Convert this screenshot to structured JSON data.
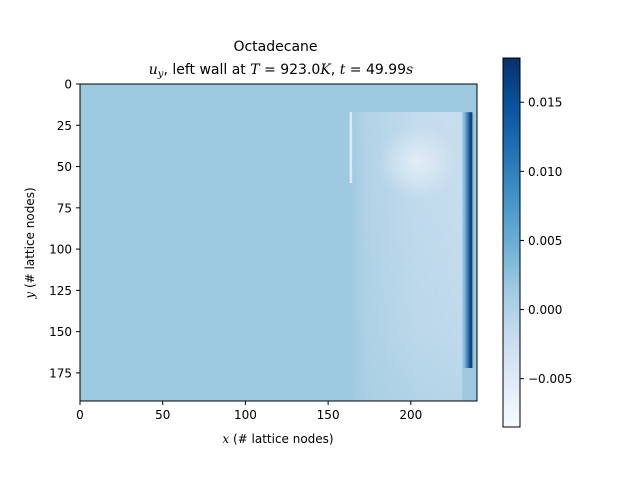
{
  "chart_data": {
    "type": "heatmap",
    "title_line1": "Octadecane",
    "title_line2": {
      "var": "u",
      "var_sub": "y",
      "text1": ", left wall at ",
      "T_sym": "T",
      "T_val": " = 923.0",
      "T_unit": "K",
      "text2": ", ",
      "t_sym": "t",
      "t_val": " = 49.99",
      "t_unit": "s"
    },
    "xlabel": {
      "var": "x",
      "rest": " (# lattice nodes)"
    },
    "ylabel": {
      "var": "y",
      "rest": " (# lattice nodes)"
    },
    "xlim": [
      0,
      240
    ],
    "ylim": [
      192,
      0
    ],
    "xticks": [
      0,
      50,
      100,
      150,
      200
    ],
    "yticks": [
      0,
      25,
      50,
      75,
      100,
      125,
      150,
      175
    ],
    "colorbar": {
      "cmap": "Blues",
      "vmin": -0.0085,
      "vmax": 0.0182,
      "ticks": [
        -0.005,
        0.0,
        0.005,
        0.01,
        0.015
      ],
      "tick_labels": [
        "−0.005",
        "0.000",
        "0.005",
        "0.010",
        "0.015"
      ]
    },
    "background_value": 0.0015,
    "features": [
      {
        "feature": "strong positive boundary layer",
        "x": [
          231,
          238
        ],
        "y": [
          17,
          172
        ],
        "value": 0.018
      },
      {
        "feature": "negative melt region",
        "x": [
          163,
          231
        ],
        "y": [
          17,
          192
        ],
        "value": -0.002
      },
      {
        "feature": "negative core near top",
        "x": [
          180,
          228
        ],
        "y": [
          25,
          70
        ],
        "value": -0.004
      }
    ]
  }
}
